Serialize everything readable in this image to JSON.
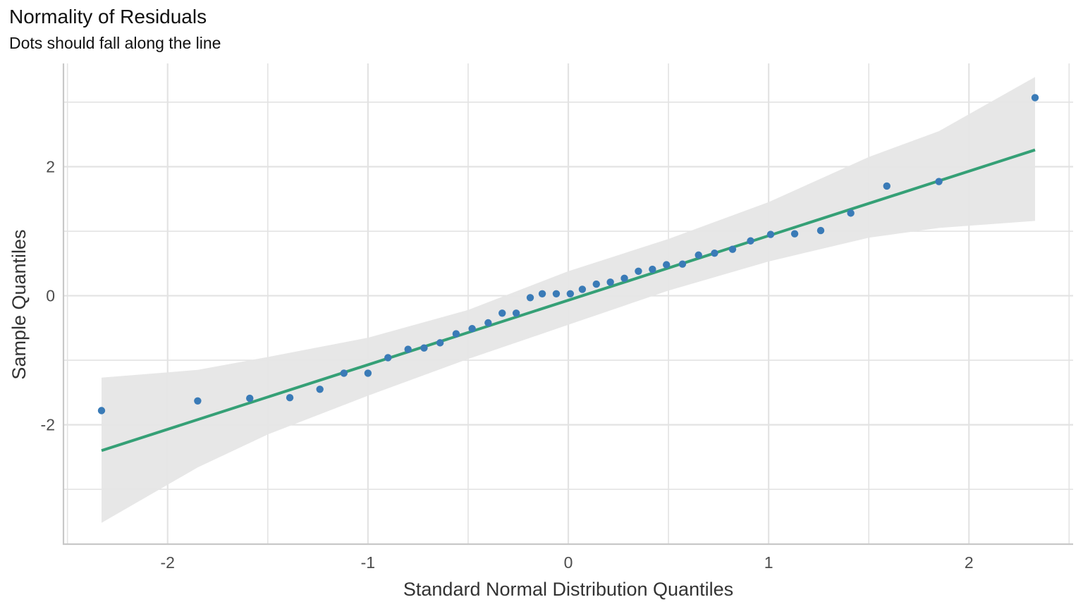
{
  "chart_data": {
    "type": "scatter",
    "title": "Normality of Residuals",
    "subtitle": "Dots should fall along the line",
    "xlabel": "Standard Normal Distribution Quantiles",
    "ylabel": "Sample Quantiles",
    "xlim": [
      -2.52,
      2.52
    ],
    "ylim": [
      -3.85,
      3.6
    ],
    "x_ticks": [
      -2,
      -1,
      0,
      1,
      2
    ],
    "x_tick_labels": [
      "-2",
      "-1",
      "0",
      "1",
      "2"
    ],
    "y_ticks": [
      -2,
      0,
      2
    ],
    "y_tick_labels": [
      "-2",
      "0",
      "2"
    ],
    "grid": true,
    "colors": {
      "points": "#3a7bb7",
      "line": "#35a076",
      "band": "#e6e6e6",
      "grid": "#e3e3e3",
      "axis": "#c8c8c8"
    },
    "points": [
      {
        "x": -2.33,
        "y": -1.78
      },
      {
        "x": -1.85,
        "y": -1.63
      },
      {
        "x": -1.59,
        "y": -1.59
      },
      {
        "x": -1.39,
        "y": -1.58
      },
      {
        "x": -1.24,
        "y": -1.45
      },
      {
        "x": -1.12,
        "y": -1.2
      },
      {
        "x": -1.0,
        "y": -1.2
      },
      {
        "x": -0.9,
        "y": -0.96
      },
      {
        "x": -0.8,
        "y": -0.83
      },
      {
        "x": -0.72,
        "y": -0.81
      },
      {
        "x": -0.64,
        "y": -0.73
      },
      {
        "x": -0.56,
        "y": -0.59
      },
      {
        "x": -0.48,
        "y": -0.51
      },
      {
        "x": -0.4,
        "y": -0.42
      },
      {
        "x": -0.33,
        "y": -0.27
      },
      {
        "x": -0.26,
        "y": -0.27
      },
      {
        "x": -0.19,
        "y": -0.03
      },
      {
        "x": -0.13,
        "y": 0.03
      },
      {
        "x": -0.06,
        "y": 0.03
      },
      {
        "x": 0.01,
        "y": 0.03
      },
      {
        "x": 0.07,
        "y": 0.1
      },
      {
        "x": 0.14,
        "y": 0.18
      },
      {
        "x": 0.21,
        "y": 0.21
      },
      {
        "x": 0.28,
        "y": 0.27
      },
      {
        "x": 0.35,
        "y": 0.38
      },
      {
        "x": 0.42,
        "y": 0.41
      },
      {
        "x": 0.49,
        "y": 0.48
      },
      {
        "x": 0.57,
        "y": 0.49
      },
      {
        "x": 0.65,
        "y": 0.63
      },
      {
        "x": 0.73,
        "y": 0.66
      },
      {
        "x": 0.82,
        "y": 0.72
      },
      {
        "x": 0.91,
        "y": 0.85
      },
      {
        "x": 1.01,
        "y": 0.95
      },
      {
        "x": 1.13,
        "y": 0.96
      },
      {
        "x": 1.26,
        "y": 1.01
      },
      {
        "x": 1.41,
        "y": 1.28
      },
      {
        "x": 1.59,
        "y": 1.7
      },
      {
        "x": 1.85,
        "y": 1.77
      },
      {
        "x": 2.33,
        "y": 3.07
      }
    ],
    "reference_line": {
      "x": [
        -2.33,
        2.33
      ],
      "y": [
        -2.4,
        2.26
      ]
    },
    "confidence_band": {
      "x": [
        -2.33,
        -1.85,
        -1.5,
        -1.0,
        -0.5,
        0.0,
        0.5,
        1.0,
        1.5,
        1.85,
        2.33
      ],
      "lower": [
        -3.52,
        -2.66,
        -2.15,
        -1.55,
        -0.98,
        -0.45,
        0.08,
        0.53,
        0.9,
        1.05,
        1.16
      ],
      "upper": [
        -1.27,
        -1.15,
        -0.95,
        -0.65,
        -0.22,
        0.38,
        0.88,
        1.45,
        2.15,
        2.55,
        3.39
      ]
    }
  }
}
